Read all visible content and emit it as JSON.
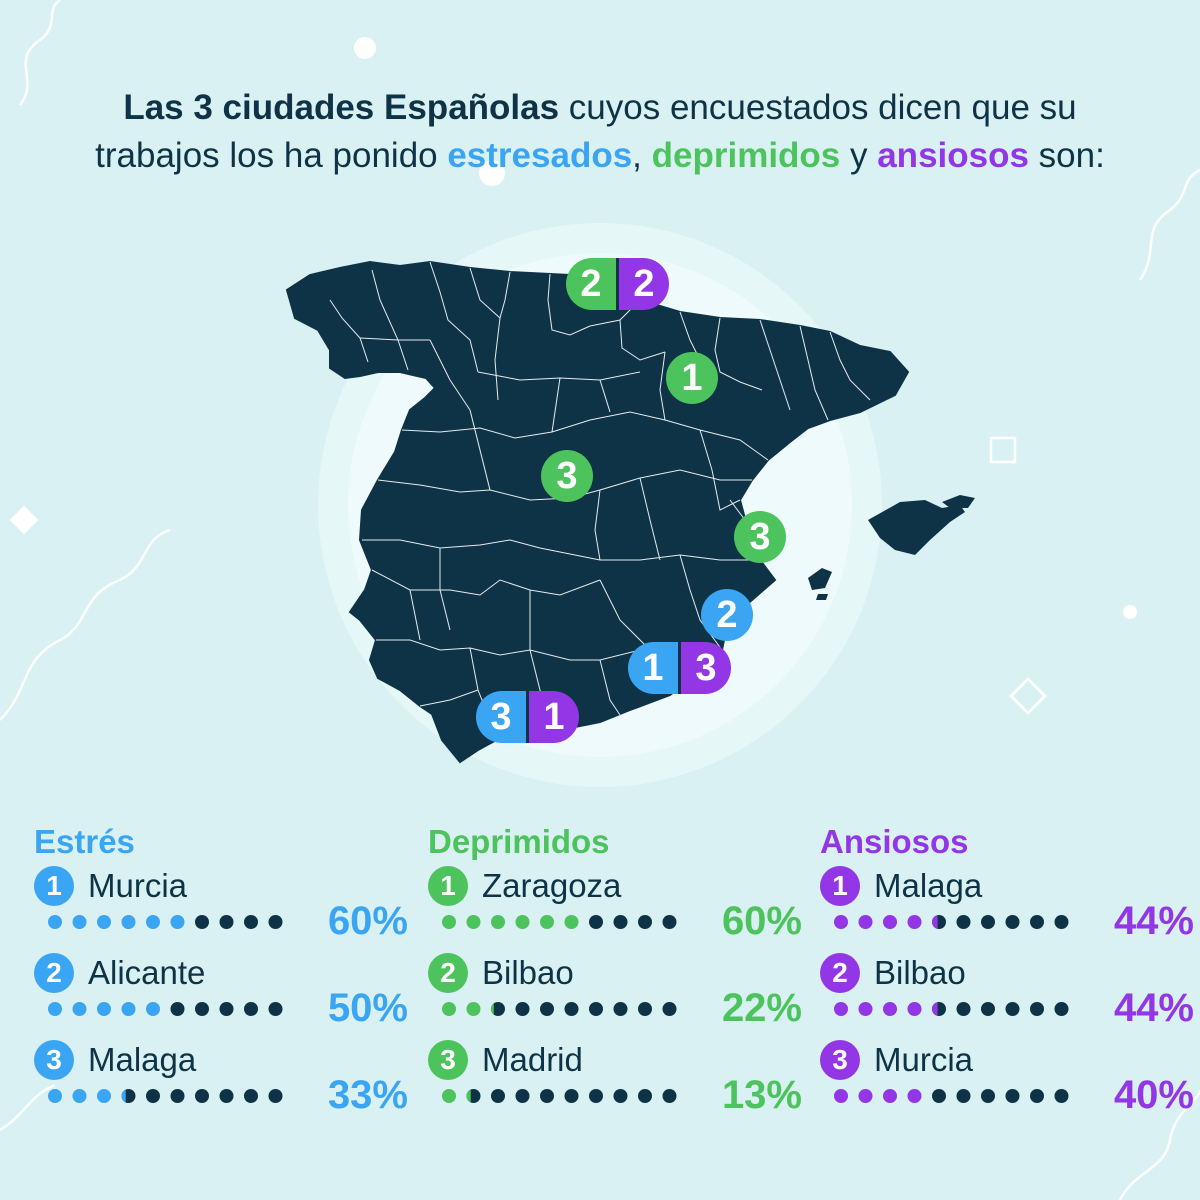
{
  "title": {
    "part1_bold": "Las 3 ciudades Españolas",
    "part2": " cuyos encuestados dicen que su",
    "part3": "trabajos los ha ponido ",
    "kw_stress": "estresados",
    "comma": ", ",
    "kw_depressed": "deprimidos",
    "and": " y ",
    "kw_anxious": "ansiosos",
    "end": " son:"
  },
  "colors": {
    "stress": "#3aa5f2",
    "depressed": "#4cc35c",
    "anxious": "#9336e6",
    "map_fill": "#0e3347",
    "background": "#d9f1f2",
    "dot_empty": "#0e3347"
  },
  "map_markers": {
    "bilbao": {
      "left": "2",
      "right": "2"
    },
    "zaragoza": "1",
    "madrid": "3",
    "valencia": "3",
    "alicante": "2",
    "murcia": {
      "left": "1",
      "right": "3"
    },
    "malaga": {
      "left": "3",
      "right": "1"
    }
  },
  "columns": [
    {
      "title": "Estrés",
      "color": "blue",
      "entries": [
        {
          "rank": "1",
          "city": "Murcia",
          "pct": "60%",
          "value": 0.6
        },
        {
          "rank": "2",
          "city": "Alicante",
          "pct": "50%",
          "value": 0.5
        },
        {
          "rank": "3",
          "city": "Malaga",
          "pct": "33%",
          "value": 0.33
        }
      ]
    },
    {
      "title": "Deprimidos",
      "color": "green",
      "entries": [
        {
          "rank": "1",
          "city": "Zaragoza",
          "pct": "60%",
          "value": 0.6
        },
        {
          "rank": "2",
          "city": "Bilbao",
          "pct": "22%",
          "value": 0.22
        },
        {
          "rank": "3",
          "city": "Madrid",
          "pct": "13%",
          "value": 0.13
        }
      ]
    },
    {
      "title": "Ansiosos",
      "color": "purple",
      "entries": [
        {
          "rank": "1",
          "city": "Malaga",
          "pct": "44%",
          "value": 0.44
        },
        {
          "rank": "2",
          "city": "Bilbao",
          "pct": "44%",
          "value": 0.44
        },
        {
          "rank": "3",
          "city": "Murcia",
          "pct": "40%",
          "value": 0.4
        }
      ]
    }
  ]
}
